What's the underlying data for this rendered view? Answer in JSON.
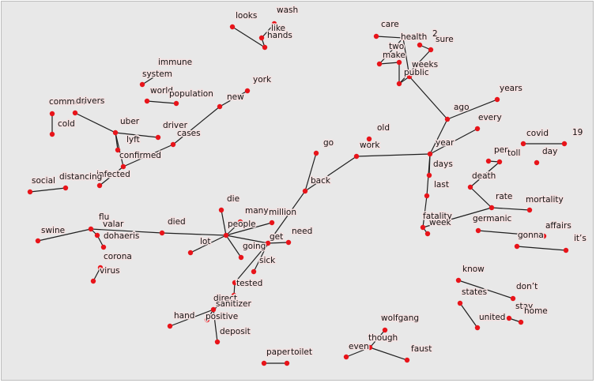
{
  "graph": {
    "nodes": [
      {
        "id": "wash",
        "label": "wash"
      },
      {
        "id": "looks",
        "label": "looks"
      },
      {
        "id": "like",
        "label": "like"
      },
      {
        "id": "hands",
        "label": "hands"
      },
      {
        "id": "immune",
        "label": "immune"
      },
      {
        "id": "system",
        "label": "system"
      },
      {
        "id": "world",
        "label": "world"
      },
      {
        "id": "population",
        "label": "population"
      },
      {
        "id": "york",
        "label": "york"
      },
      {
        "id": "new",
        "label": "new"
      },
      {
        "id": "common",
        "label": "common"
      },
      {
        "id": "drivers",
        "label": "drivers"
      },
      {
        "id": "cold",
        "label": "cold"
      },
      {
        "id": "uber",
        "label": "uber"
      },
      {
        "id": "lyft",
        "label": "lyft"
      },
      {
        "id": "driver",
        "label": "driver"
      },
      {
        "id": "cases",
        "label": "cases"
      },
      {
        "id": "confirmed",
        "label": "confirmed"
      },
      {
        "id": "infected",
        "label": "infected"
      },
      {
        "id": "social",
        "label": "social"
      },
      {
        "id": "distancing",
        "label": "distancing"
      },
      {
        "id": "flu",
        "label": "flu"
      },
      {
        "id": "valar",
        "label": "valar"
      },
      {
        "id": "dohaeris",
        "label": "dohaeris"
      },
      {
        "id": "swine",
        "label": "swine"
      },
      {
        "id": "died",
        "label": "died"
      },
      {
        "id": "corona",
        "label": "corona"
      },
      {
        "id": "virus",
        "label": "virus"
      },
      {
        "id": "die",
        "label": "die"
      },
      {
        "id": "many",
        "label": "many"
      },
      {
        "id": "million",
        "label": "million"
      },
      {
        "id": "people",
        "label": "people"
      },
      {
        "id": "lot",
        "label": "lot"
      },
      {
        "id": "get",
        "label": "get"
      },
      {
        "id": "need",
        "label": "need"
      },
      {
        "id": "going",
        "label": "going"
      },
      {
        "id": "sick",
        "label": "sick"
      },
      {
        "id": "tested",
        "label": "tested"
      },
      {
        "id": "direct",
        "label": "direct"
      },
      {
        "id": "sanitizer",
        "label": "sanitizer"
      },
      {
        "id": "hand",
        "label": "hand"
      },
      {
        "id": "positive",
        "label": "positive"
      },
      {
        "id": "deposit",
        "label": "deposit"
      },
      {
        "id": "go",
        "label": "go"
      },
      {
        "id": "back",
        "label": "back"
      },
      {
        "id": "old",
        "label": "old"
      },
      {
        "id": "work",
        "label": "work"
      },
      {
        "id": "care",
        "label": "care"
      },
      {
        "id": "health",
        "label": "health"
      },
      {
        "id": "2",
        "label": "2"
      },
      {
        "id": "sure",
        "label": "sure"
      },
      {
        "id": "two",
        "label": "two"
      },
      {
        "id": "make",
        "label": "make"
      },
      {
        "id": "weeks",
        "label": "weeks"
      },
      {
        "id": "public",
        "label": "public"
      },
      {
        "id": "years",
        "label": "years"
      },
      {
        "id": "ago",
        "label": "ago"
      },
      {
        "id": "every",
        "label": "every"
      },
      {
        "id": "year",
        "label": "year"
      },
      {
        "id": "days",
        "label": "days"
      },
      {
        "id": "last",
        "label": "last"
      },
      {
        "id": "fatality",
        "label": "fatality"
      },
      {
        "id": "week",
        "label": "week"
      },
      {
        "id": "covid",
        "label": "covid"
      },
      {
        "id": "19",
        "label": "19"
      },
      {
        "id": "per",
        "label": "per"
      },
      {
        "id": "toll",
        "label": "toll"
      },
      {
        "id": "day",
        "label": "day"
      },
      {
        "id": "death",
        "label": "death"
      },
      {
        "id": "rate",
        "label": "rate"
      },
      {
        "id": "mortality",
        "label": "mortality"
      },
      {
        "id": "germanic",
        "label": "germanic"
      },
      {
        "id": "affairs",
        "label": "affairs"
      },
      {
        "id": "gonna",
        "label": "gonna"
      },
      {
        "id": "its",
        "label": "it’s"
      },
      {
        "id": "know",
        "label": "know"
      },
      {
        "id": "dont",
        "label": "don’t"
      },
      {
        "id": "states",
        "label": "states"
      },
      {
        "id": "stay",
        "label": "stay"
      },
      {
        "id": "home",
        "label": "home"
      },
      {
        "id": "united",
        "label": "united"
      },
      {
        "id": "wolfgang",
        "label": "wolfgang"
      },
      {
        "id": "though",
        "label": "though"
      },
      {
        "id": "even",
        "label": "even"
      },
      {
        "id": "faust",
        "label": "faust"
      },
      {
        "id": "paper",
        "label": "paper"
      },
      {
        "id": "toilet",
        "label": "toilet"
      }
    ],
    "edges": [
      [
        "like",
        "wash"
      ],
      [
        "looks",
        "hands"
      ],
      [
        "like",
        "hands"
      ],
      [
        "immune",
        "system"
      ],
      [
        "world",
        "population"
      ],
      [
        "common",
        "cold"
      ],
      [
        "drivers",
        "uber"
      ],
      [
        "uber",
        "lyft"
      ],
      [
        "uber",
        "driver"
      ],
      [
        "uber",
        "confirmed"
      ],
      [
        "confirmed",
        "cases"
      ],
      [
        "confirmed",
        "infected"
      ],
      [
        "cases",
        "new"
      ],
      [
        "new",
        "york"
      ],
      [
        "social",
        "distancing"
      ],
      [
        "flu",
        "valar"
      ],
      [
        "swine",
        "flu"
      ],
      [
        "flu",
        "died"
      ],
      [
        "valar",
        "dohaeris"
      ],
      [
        "died",
        "people"
      ],
      [
        "corona",
        "virus"
      ],
      [
        "die",
        "people"
      ],
      [
        "many",
        "people"
      ],
      [
        "people",
        "million"
      ],
      [
        "people",
        "lot"
      ],
      [
        "people",
        "get"
      ],
      [
        "people",
        "going"
      ],
      [
        "get",
        "need"
      ],
      [
        "get",
        "sick"
      ],
      [
        "get",
        "back"
      ],
      [
        "get",
        "tested"
      ],
      [
        "back",
        "go"
      ],
      [
        "back",
        "work"
      ],
      [
        "work",
        "year"
      ],
      [
        "tested",
        "direct"
      ],
      [
        "direct",
        "sanitizer"
      ],
      [
        "sanitizer",
        "hand"
      ],
      [
        "sanitizer",
        "positive"
      ],
      [
        "sanitizer",
        "deposit"
      ],
      [
        "care",
        "health"
      ],
      [
        "health",
        "make"
      ],
      [
        "health",
        "public"
      ],
      [
        "2",
        "sure"
      ],
      [
        "two",
        "make"
      ],
      [
        "two",
        "weeks"
      ],
      [
        "sure",
        "weeks"
      ],
      [
        "weeks",
        "public"
      ],
      [
        "public",
        "ago"
      ],
      [
        "years",
        "ago"
      ],
      [
        "ago",
        "year"
      ],
      [
        "every",
        "year"
      ],
      [
        "year",
        "days"
      ],
      [
        "year",
        "last"
      ],
      [
        "last",
        "fatality"
      ],
      [
        "fatality",
        "week"
      ],
      [
        "fatality",
        "rate"
      ],
      [
        "rate",
        "death"
      ],
      [
        "death",
        "toll"
      ],
      [
        "toll",
        "per"
      ],
      [
        "rate",
        "mortality"
      ],
      [
        "covid",
        "19"
      ],
      [
        "germanic",
        "affairs"
      ],
      [
        "gonna",
        "its"
      ],
      [
        "know",
        "dont"
      ],
      [
        "states",
        "united"
      ],
      [
        "stay",
        "home"
      ],
      [
        "wolfgang",
        "though"
      ],
      [
        "though",
        "faust"
      ],
      [
        "though",
        "even"
      ],
      [
        "paper",
        "toilet"
      ]
    ]
  }
}
